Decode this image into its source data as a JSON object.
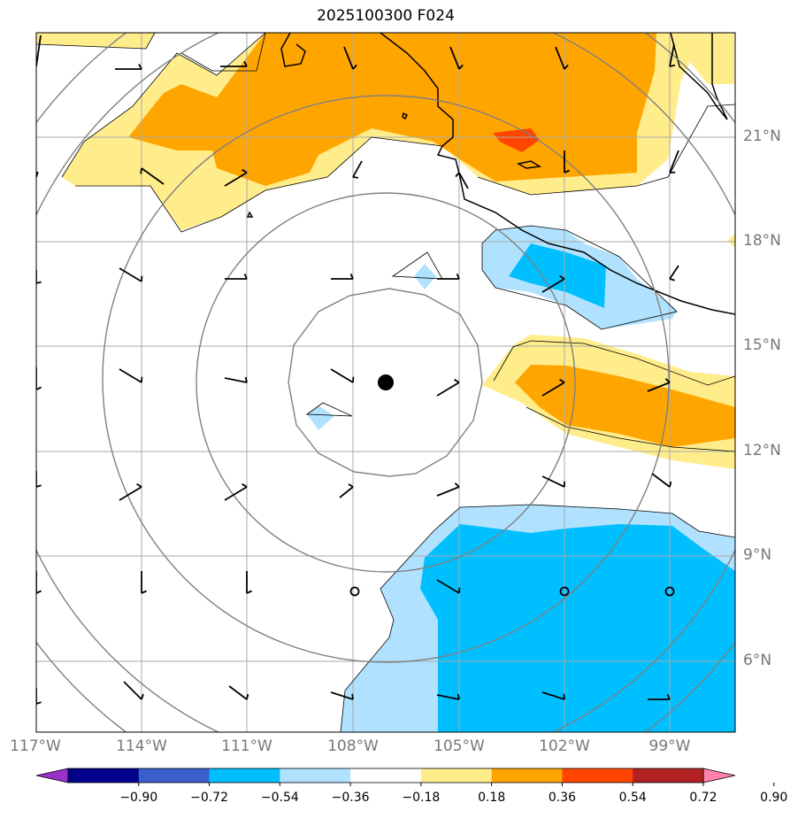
{
  "title": "2025100300 F024",
  "axes": {
    "lat_labels": [
      "21°N",
      "18°N",
      "15°N",
      "12°N",
      "9°N",
      "6°N"
    ],
    "lon_labels": [
      "117°W",
      "114°W",
      "111°W",
      "108°W",
      "105°W",
      "102°W",
      "99°W"
    ],
    "extent": {
      "lon_min": -117,
      "lon_max": -97.1,
      "lat_min": 4,
      "lat_max": 24
    }
  },
  "center_marker": {
    "lon": -107.1,
    "lat": 14.0
  },
  "colorbar": {
    "ticks": [
      "−0.90",
      "−0.72",
      "−0.54",
      "−0.36",
      "−0.18",
      "0.18",
      "0.36",
      "0.54",
      "0.72",
      "0.90"
    ],
    "colors": [
      "#9932cc",
      "#00008b",
      "#3a5fcd",
      "#00bfff",
      "#b0e2ff",
      "#ffffff",
      "#ffec8b",
      "#ffa500",
      "#ff4500",
      "#b22222",
      "#ff82ab"
    ],
    "extend": "both"
  }
}
